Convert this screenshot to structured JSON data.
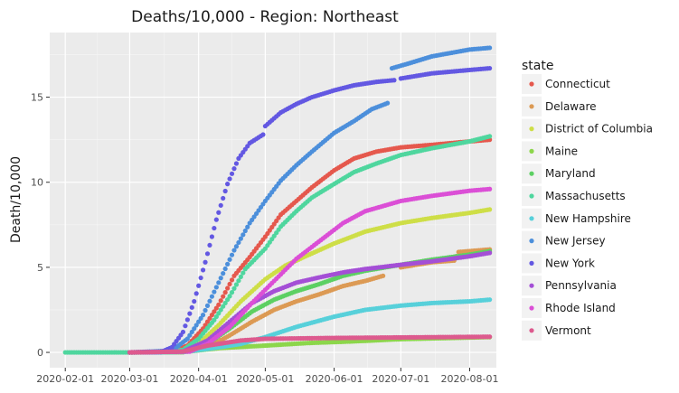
{
  "chart_data": {
    "type": "scatter",
    "title": "Deaths/10,000 - Region: Northeast",
    "xlabel": "",
    "ylabel": "Death/10,000",
    "x_axis_type": "date",
    "xlim": [
      "2020-01-25",
      "2020-08-13"
    ],
    "ylim": [
      -0.9,
      18.8
    ],
    "x_ticks": [
      "2020-02-01",
      "2020-03-01",
      "2020-04-01",
      "2020-05-01",
      "2020-06-01",
      "2020-07-01",
      "2020-08-01"
    ],
    "y_ticks": [
      0,
      5,
      10,
      15
    ],
    "y_tick_labels": [
      "0",
      "5",
      "10",
      "15"
    ],
    "grid": true,
    "legend_title": "state",
    "legend_position": "right",
    "series": [
      {
        "name": "Connecticut",
        "color": "#e5584d",
        "start": "2020-03-01",
        "end": "2020-08-10",
        "points": [
          [
            "2020-03-01",
            0
          ],
          [
            "2020-03-20",
            0.05
          ],
          [
            "2020-03-27",
            0.4
          ],
          [
            "2020-04-03",
            1.4
          ],
          [
            "2020-04-10",
            2.8
          ],
          [
            "2020-04-17",
            4.5
          ],
          [
            "2020-04-24",
            5.6
          ],
          [
            "2020-05-01",
            6.8
          ],
          [
            "2020-05-08",
            8.1
          ],
          [
            "2020-05-15",
            8.9
          ],
          [
            "2020-05-22",
            9.7
          ],
          [
            "2020-06-01",
            10.7
          ],
          [
            "2020-06-10",
            11.4
          ],
          [
            "2020-06-20",
            11.8
          ],
          [
            "2020-07-01",
            12.05
          ],
          [
            "2020-07-15",
            12.2
          ],
          [
            "2020-08-01",
            12.4
          ],
          [
            "2020-08-10",
            12.5
          ]
        ]
      },
      {
        "name": "Delaware",
        "color": "#dc9a54",
        "start": "2020-03-01",
        "end": "2020-08-10",
        "points": [
          [
            "2020-03-01",
            0
          ],
          [
            "2020-03-25",
            0.01
          ],
          [
            "2020-04-05",
            0.3
          ],
          [
            "2020-04-15",
            1.0
          ],
          [
            "2020-04-25",
            1.8
          ],
          [
            "2020-05-05",
            2.5
          ],
          [
            "2020-05-15",
            3.0
          ],
          [
            "2020-05-25",
            3.4
          ],
          [
            "2020-06-05",
            3.9
          ],
          [
            "2020-06-15",
            4.2
          ],
          [
            "2020-06-23",
            4.5
          ],
          [
            "2020-06-24",
            null
          ],
          [
            "2020-07-01",
            5.0
          ],
          [
            "2020-07-15",
            5.3
          ],
          [
            "2020-07-25",
            5.4
          ],
          [
            "2020-07-27",
            5.9
          ],
          [
            "2020-08-10",
            6.05
          ]
        ]
      },
      {
        "name": "District of Columbia",
        "color": "#cede47",
        "start": "2020-03-01",
        "end": "2020-08-10",
        "points": [
          [
            "2020-03-01",
            0
          ],
          [
            "2020-03-25",
            0.05
          ],
          [
            "2020-04-01",
            0.5
          ],
          [
            "2020-04-10",
            1.6
          ],
          [
            "2020-04-20",
            3.0
          ],
          [
            "2020-05-01",
            4.3
          ],
          [
            "2020-05-10",
            5.1
          ],
          [
            "2020-05-20",
            5.7
          ],
          [
            "2020-06-01",
            6.4
          ],
          [
            "2020-06-15",
            7.1
          ],
          [
            "2020-07-01",
            7.6
          ],
          [
            "2020-07-15",
            7.9
          ],
          [
            "2020-08-01",
            8.2
          ],
          [
            "2020-08-10",
            8.4
          ]
        ]
      },
      {
        "name": "Maine",
        "color": "#8cd64b",
        "start": "2020-03-01",
        "end": "2020-08-10",
        "points": [
          [
            "2020-03-01",
            0
          ],
          [
            "2020-03-25",
            0.02
          ],
          [
            "2020-04-10",
            0.25
          ],
          [
            "2020-05-01",
            0.4
          ],
          [
            "2020-05-20",
            0.55
          ],
          [
            "2020-06-10",
            0.65
          ],
          [
            "2020-07-01",
            0.78
          ],
          [
            "2020-08-10",
            0.9
          ]
        ]
      },
      {
        "name": "Maryland",
        "color": "#5dd063",
        "start": "2020-03-01",
        "end": "2020-08-10",
        "points": [
          [
            "2020-03-01",
            0
          ],
          [
            "2020-03-25",
            0.03
          ],
          [
            "2020-04-05",
            0.5
          ],
          [
            "2020-04-15",
            1.4
          ],
          [
            "2020-04-25",
            2.4
          ],
          [
            "2020-05-05",
            3.1
          ],
          [
            "2020-05-15",
            3.6
          ],
          [
            "2020-05-25",
            4.0
          ],
          [
            "2020-06-05",
            4.5
          ],
          [
            "2020-06-15",
            4.8
          ],
          [
            "2020-07-01",
            5.15
          ],
          [
            "2020-07-15",
            5.45
          ],
          [
            "2020-08-01",
            5.75
          ],
          [
            "2020-08-10",
            5.95
          ]
        ]
      },
      {
        "name": "Massachusetts",
        "color": "#4fd69e",
        "start": "2020-02-01",
        "end": "2020-08-10",
        "points": [
          [
            "2020-02-01",
            0
          ],
          [
            "2020-03-15",
            0
          ],
          [
            "2020-03-25",
            0.15
          ],
          [
            "2020-04-01",
            0.8
          ],
          [
            "2020-04-08",
            1.9
          ],
          [
            "2020-04-15",
            3.3
          ],
          [
            "2020-04-22",
            4.9
          ],
          [
            "2020-05-01",
            6.1
          ],
          [
            "2020-05-08",
            7.4
          ],
          [
            "2020-05-15",
            8.3
          ],
          [
            "2020-05-22",
            9.1
          ],
          [
            "2020-06-01",
            9.9
          ],
          [
            "2020-06-10",
            10.6
          ],
          [
            "2020-06-20",
            11.1
          ],
          [
            "2020-07-01",
            11.6
          ],
          [
            "2020-07-15",
            12.0
          ],
          [
            "2020-08-01",
            12.4
          ],
          [
            "2020-08-10",
            12.7
          ]
        ]
      },
      {
        "name": "New Hampshire",
        "color": "#57d0da",
        "start": "2020-03-01",
        "end": "2020-08-10",
        "points": [
          [
            "2020-03-01",
            0
          ],
          [
            "2020-03-25",
            0.02
          ],
          [
            "2020-04-05",
            0.2
          ],
          [
            "2020-04-20",
            0.5
          ],
          [
            "2020-05-01",
            0.9
          ],
          [
            "2020-05-15",
            1.5
          ],
          [
            "2020-06-01",
            2.1
          ],
          [
            "2020-06-15",
            2.5
          ],
          [
            "2020-07-01",
            2.75
          ],
          [
            "2020-07-15",
            2.9
          ],
          [
            "2020-08-01",
            3.0
          ],
          [
            "2020-08-10",
            3.1
          ]
        ]
      },
      {
        "name": "New Jersey",
        "color": "#4c8fdb",
        "start": "2020-03-01",
        "end": "2020-08-10",
        "points": [
          [
            "2020-03-01",
            0
          ],
          [
            "2020-03-20",
            0.1
          ],
          [
            "2020-03-27",
            0.8
          ],
          [
            "2020-04-03",
            2.2
          ],
          [
            "2020-04-10",
            4.1
          ],
          [
            "2020-04-17",
            6.0
          ],
          [
            "2020-04-24",
            7.6
          ],
          [
            "2020-05-01",
            8.9
          ],
          [
            "2020-05-08",
            10.1
          ],
          [
            "2020-05-15",
            11.0
          ],
          [
            "2020-05-22",
            11.8
          ],
          [
            "2020-06-01",
            12.9
          ],
          [
            "2020-06-10",
            13.6
          ],
          [
            "2020-06-18",
            14.3
          ],
          [
            "2020-06-25",
            14.65
          ],
          [
            "2020-06-26",
            null
          ],
          [
            "2020-06-27",
            16.7
          ],
          [
            "2020-07-05",
            17.0
          ],
          [
            "2020-07-15",
            17.4
          ],
          [
            "2020-08-01",
            17.8
          ],
          [
            "2020-08-10",
            17.9
          ]
        ]
      },
      {
        "name": "New York",
        "color": "#6358e2",
        "start": "2020-03-01",
        "end": "2020-08-10",
        "points": [
          [
            "2020-03-01",
            0
          ],
          [
            "2020-03-15",
            0.02
          ],
          [
            "2020-03-20",
            0.3
          ],
          [
            "2020-03-25",
            1.2
          ],
          [
            "2020-03-30",
            3.0
          ],
          [
            "2020-04-04",
            5.3
          ],
          [
            "2020-04-09",
            7.8
          ],
          [
            "2020-04-14",
            9.9
          ],
          [
            "2020-04-19",
            11.4
          ],
          [
            "2020-04-24",
            12.3
          ],
          [
            "2020-04-30",
            12.8
          ],
          [
            "2020-05-01",
            13.3
          ],
          [
            "2020-05-08",
            14.1
          ],
          [
            "2020-05-15",
            14.6
          ],
          [
            "2020-05-22",
            15.0
          ],
          [
            "2020-06-01",
            15.4
          ],
          [
            "2020-06-10",
            15.7
          ],
          [
            "2020-06-20",
            15.9
          ],
          [
            "2020-06-28",
            16.0
          ],
          [
            "2020-06-29",
            null
          ],
          [
            "2020-07-01",
            16.1
          ],
          [
            "2020-07-15",
            16.4
          ],
          [
            "2020-08-01",
            16.6
          ],
          [
            "2020-08-10",
            16.7
          ]
        ]
      },
      {
        "name": "Pennsylvania",
        "color": "#a44fd6",
        "start": "2020-03-01",
        "end": "2020-08-10",
        "points": [
          [
            "2020-03-01",
            0
          ],
          [
            "2020-03-25",
            0.05
          ],
          [
            "2020-04-05",
            0.7
          ],
          [
            "2020-04-15",
            1.8
          ],
          [
            "2020-04-25",
            2.9
          ],
          [
            "2020-05-05",
            3.6
          ],
          [
            "2020-05-15",
            4.1
          ],
          [
            "2020-05-25",
            4.4
          ],
          [
            "2020-06-05",
            4.7
          ],
          [
            "2020-06-15",
            4.9
          ],
          [
            "2020-07-01",
            5.15
          ],
          [
            "2020-07-15",
            5.35
          ],
          [
            "2020-08-01",
            5.65
          ],
          [
            "2020-08-10",
            5.85
          ]
        ]
      },
      {
        "name": "Rhode Island",
        "color": "#db4fd6",
        "start": "2020-03-01",
        "end": "2020-08-10",
        "points": [
          [
            "2020-03-01",
            0
          ],
          [
            "2020-03-28",
            0.05
          ],
          [
            "2020-04-05",
            0.5
          ],
          [
            "2020-04-15",
            1.5
          ],
          [
            "2020-04-25",
            2.9
          ],
          [
            "2020-05-05",
            4.2
          ],
          [
            "2020-05-15",
            5.5
          ],
          [
            "2020-05-25",
            6.5
          ],
          [
            "2020-06-05",
            7.6
          ],
          [
            "2020-06-15",
            8.3
          ],
          [
            "2020-07-01",
            8.9
          ],
          [
            "2020-07-15",
            9.2
          ],
          [
            "2020-08-01",
            9.5
          ],
          [
            "2020-08-10",
            9.6
          ]
        ]
      },
      {
        "name": "Vermont",
        "color": "#dd5a8e",
        "start": "2020-03-01",
        "end": "2020-08-10",
        "points": [
          [
            "2020-03-01",
            0
          ],
          [
            "2020-03-25",
            0.05
          ],
          [
            "2020-04-05",
            0.4
          ],
          [
            "2020-04-20",
            0.7
          ],
          [
            "2020-05-01",
            0.8
          ],
          [
            "2020-06-01",
            0.85
          ],
          [
            "2020-07-01",
            0.88
          ],
          [
            "2020-08-10",
            0.92
          ]
        ]
      }
    ]
  }
}
